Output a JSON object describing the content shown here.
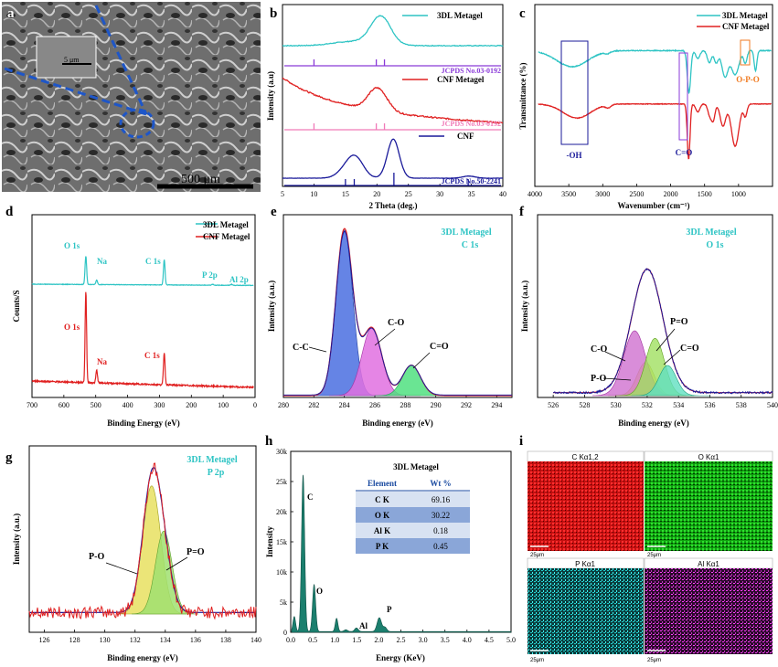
{
  "colors": {
    "cyan": "#2ec4c4",
    "red": "#e02020",
    "navy": "#1a1a9a",
    "purple": "#8a3ad8",
    "pink": "#f07ab8",
    "orange": "#f07a20",
    "teal": "#1b7f6e"
  },
  "panel_a": {
    "letter": "a",
    "scale_small": "5 μm",
    "scale_large": "500 μm"
  },
  "panel_b": {
    "letter": "b",
    "ylabel": "Intensity (a.u)",
    "xlabel": "2 Theta (deg.)",
    "legend": [
      "3DL Metagel",
      "CNF Metagel",
      "CNF"
    ],
    "refs": [
      "JCPDS No.03-0192",
      "JCPDS No.03-0192",
      "JCPDS No.50-2241"
    ],
    "xticks": [
      "5",
      "10",
      "15",
      "20",
      "25",
      "30",
      "35",
      "40"
    ]
  },
  "panel_c": {
    "letter": "c",
    "ylabel": "Transmittance (%)",
    "xlabel": "Wavenumber (cm⁻¹)",
    "legend": [
      "3DL Metagel",
      "CNF Metagel"
    ],
    "ann": [
      "-OH",
      "C=O",
      "O-P-O"
    ],
    "xticks": [
      "4000",
      "3500",
      "3000",
      "2500",
      "2000",
      "1500",
      "1000"
    ]
  },
  "panel_d": {
    "letter": "d",
    "ylabel": "Counts/S",
    "xlabel": "Binding Energy (eV)",
    "legend": [
      "3DL Metagel",
      "CNF Metagel"
    ],
    "ann_top": [
      "O 1s",
      "Na",
      "C 1s",
      "P 2p",
      "Al 2p"
    ],
    "ann_bottom": [
      "O 1s",
      "Na",
      "C 1s"
    ],
    "xticks": [
      "700",
      "600",
      "500",
      "400",
      "300",
      "200",
      "100",
      "0"
    ]
  },
  "panel_e": {
    "letter": "e",
    "ylabel": "Intensity (a.u.)",
    "xlabel": "Binding energy (eV)",
    "title": [
      "3DL Metagel",
      "C 1s"
    ],
    "peaks": [
      "C-C",
      "C-O",
      "C=O"
    ],
    "xticks": [
      "280",
      "282",
      "284",
      "286",
      "288",
      "290",
      "292",
      "294"
    ]
  },
  "panel_f": {
    "letter": "f",
    "ylabel": "Intensity (a.u.)",
    "xlabel": "Binding energy (eV)",
    "title": [
      "3DL Metagel",
      "O 1s"
    ],
    "peaks": [
      "C-O",
      "P=O",
      "C=O",
      "P-O"
    ],
    "xticks": [
      "526",
      "528",
      "530",
      "532",
      "534",
      "536",
      "538",
      "540"
    ]
  },
  "panel_g": {
    "letter": "g",
    "ylabel": "Intensity (a.u.)",
    "xlabel": "Binding energy (eV)",
    "title": [
      "3DL Metagel",
      "P 2p"
    ],
    "peaks": [
      "P-O",
      "P=O"
    ],
    "xticks": [
      "126",
      "128",
      "130",
      "132",
      "134",
      "136",
      "138",
      "140"
    ]
  },
  "panel_h": {
    "letter": "h",
    "ylabel": "Intensity",
    "xlabel": "Energy (KeV)",
    "yticks": [
      "0",
      "5k",
      "10k",
      "15k",
      "20k",
      "25k",
      "30k"
    ],
    "xticks": [
      "0.0",
      "0.5",
      "1.0",
      "1.5",
      "2.0",
      "2.5",
      "3.0",
      "3.5",
      "4.0",
      "4.5",
      "5.0"
    ],
    "peaks": [
      "C",
      "O",
      "Al",
      "P"
    ],
    "table": {
      "title": "3DL Metagel",
      "headers": [
        "Element",
        "Wt %"
      ],
      "rows": [
        [
          "C K",
          "69.16"
        ],
        [
          "O K",
          "30.22"
        ],
        [
          "Al K",
          "0.18"
        ],
        [
          "P K",
          "0.45"
        ]
      ]
    }
  },
  "panel_i": {
    "letter": "i",
    "maps": [
      "C Kα1,2",
      "O Kα1",
      "P Kα1",
      "Al Kα1"
    ],
    "scale": "25μm"
  },
  "chart_data": [
    {
      "panel": "b",
      "type": "line",
      "xlabel": "2 Theta (deg.)",
      "ylabel": "Intensity (a.u)",
      "xlim": [
        5,
        40
      ],
      "series": [
        {
          "name": "3DL Metagel",
          "peak_x": 20.6
        },
        {
          "name": "CNF Metagel",
          "peak_x": 20.1
        },
        {
          "name": "CNF",
          "peak_x": [
            16.2,
            22.6
          ]
        }
      ]
    },
    {
      "panel": "c",
      "type": "line",
      "xlabel": "Wavenumber (cm⁻¹)",
      "ylabel": "Transmittance (%)",
      "xlim": [
        4000,
        500
      ],
      "series": [
        {
          "name": "3DL Metagel"
        },
        {
          "name": "CNF Metagel"
        }
      ],
      "bands": [
        "-OH",
        "C=O",
        "O-P-O"
      ]
    },
    {
      "panel": "d",
      "type": "line",
      "xlabel": "Binding Energy (eV)",
      "ylabel": "Counts/S",
      "xlim": [
        700,
        0
      ],
      "series": [
        {
          "name": "3DL Metagel",
          "peaks": {
            "O 1s": 531,
            "Na": 497,
            "C 1s": 285,
            "P 2p": 133,
            "Al 2p": 74
          }
        },
        {
          "name": "CNF Metagel",
          "peaks": {
            "O 1s": 531,
            "Na": 497,
            "C 1s": 285
          }
        }
      ]
    },
    {
      "panel": "e",
      "type": "area",
      "xlim": [
        280,
        295
      ],
      "peaks": [
        {
          "name": "C-C",
          "x": 284.0
        },
        {
          "name": "C-O",
          "x": 285.9
        },
        {
          "name": "C=O",
          "x": 288.3
        }
      ]
    },
    {
      "panel": "f",
      "type": "area",
      "xlim": [
        525,
        540
      ],
      "peaks": [
        {
          "name": "C-O",
          "x": 531.4
        },
        {
          "name": "P=O",
          "x": 532.5
        },
        {
          "name": "C=O",
          "x": 533.2
        },
        {
          "name": "P-O",
          "x": 531.9
        }
      ]
    },
    {
      "panel": "g",
      "type": "area",
      "xlim": [
        125,
        140
      ],
      "peaks": [
        {
          "name": "P-O",
          "x": 133.1
        },
        {
          "name": "P=O",
          "x": 133.9
        }
      ]
    },
    {
      "panel": "h",
      "type": "line",
      "xlabel": "Energy (KeV)",
      "ylabel": "Intensity",
      "xlim": [
        0,
        5
      ],
      "ylim": [
        0,
        30000
      ],
      "peaks": [
        {
          "name": "C",
          "x": 0.28,
          "y": 26000
        },
        {
          "name": "O",
          "x": 0.52,
          "y": 7800
        },
        {
          "name": "Al",
          "x": 1.49,
          "y": 500
        },
        {
          "name": "P",
          "x": 2.01,
          "y": 2300
        }
      ]
    }
  ]
}
